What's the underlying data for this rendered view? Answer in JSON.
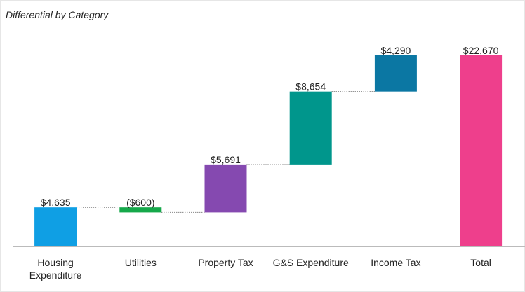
{
  "chart_data": {
    "type": "waterfall",
    "title": "Differential by Category",
    "categories": [
      "Housing Expenditure",
      "Utilities",
      "Property Tax",
      "G&S Expenditure",
      "Income Tax",
      "Total"
    ],
    "values": [
      4635,
      -600,
      5691,
      8654,
      4290,
      22670
    ],
    "value_labels": [
      "$4,635",
      "($600)",
      "$5,691",
      "$8,654",
      "$4,290",
      "$22,670"
    ],
    "totals": [
      false,
      false,
      false,
      false,
      false,
      true
    ],
    "colors": [
      "#0f9fe4",
      "#15a84a",
      "#8549b0",
      "#00968c",
      "#0b77a3",
      "#ee3f8c"
    ]
  }
}
